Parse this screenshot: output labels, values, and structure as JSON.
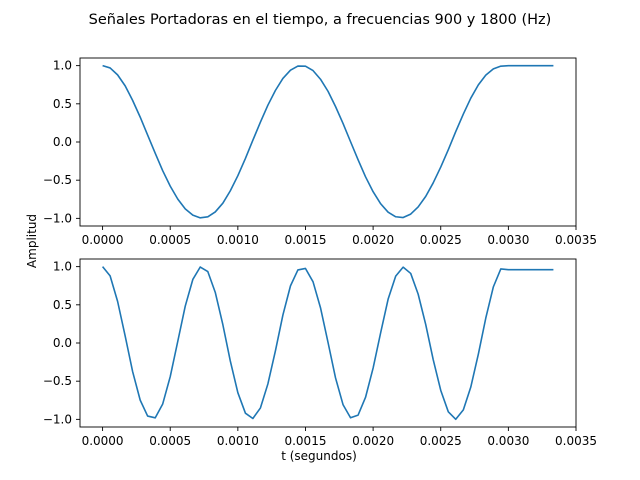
{
  "figure": {
    "title": "Señales Portadoras en el tiempo, a frecuencias 900 y 1800 (Hz)",
    "xlabel": "t (segundos)",
    "ylabel": "Amplitud"
  },
  "chart_data": [
    {
      "type": "line",
      "title": "",
      "xlim": [
        -0.000167,
        0.0035
      ],
      "ylim": [
        -1.1,
        1.1
      ],
      "x_ticks": [
        "0.0000",
        "0.0005",
        "0.0010",
        "0.0015",
        "0.0020",
        "0.0025",
        "0.0030",
        "0.0035"
      ],
      "x_tick_values": [
        0,
        0.0005,
        0.001,
        0.0015,
        0.002,
        0.0025,
        0.003,
        0.0035
      ],
      "y_ticks": [
        "−1.0",
        "−0.5",
        "0.0",
        "0.5",
        "1.0"
      ],
      "y_tick_values": [
        -1.0,
        -0.5,
        0.0,
        0.5,
        1.0
      ],
      "grid": false,
      "color": "#1f77b4",
      "series": [
        {
          "x": [
            0.0,
            5.56e-05,
            0.000111,
            0.000167,
            0.000222,
            0.000278,
            0.000333,
            0.000389,
            0.000444,
            0.0005,
            0.000556,
            0.000611,
            0.000667,
            0.000722,
            0.000778,
            0.000833,
            0.000889,
            0.000944,
            0.001,
            0.001056,
            0.001111,
            0.001167,
            0.001222,
            0.001278,
            0.001333,
            0.001389,
            0.001444,
            0.0015,
            0.001556,
            0.001611,
            0.001667,
            0.001722,
            0.001778,
            0.001833,
            0.001889,
            0.001944,
            0.002,
            0.002056,
            0.002111,
            0.002167,
            0.002222,
            0.002278,
            0.002333,
            0.002389,
            0.002444,
            0.0025,
            0.002556,
            0.002611,
            0.002667,
            0.002722,
            0.002778,
            0.002833,
            0.002889,
            0.002944,
            0.003,
            0.003056,
            0.003111,
            0.003167,
            0.003222,
            0.003278,
            0.003333
          ],
          "y": [
            1.0,
            0.97,
            0.879,
            0.735,
            0.545,
            0.326,
            0.091,
            -0.146,
            -0.374,
            -0.578,
            -0.748,
            -0.876,
            -0.957,
            -0.993,
            -0.98,
            -0.916,
            -0.801,
            -0.64,
            -0.441,
            -0.215,
            0.023,
            0.261,
            0.482,
            0.676,
            0.832,
            0.94,
            0.995,
            0.993,
            0.935,
            0.822,
            0.663,
            0.465,
            0.241,
            0.005,
            -0.233,
            -0.456,
            -0.651,
            -0.809,
            -0.919,
            -0.979,
            -0.989,
            -0.944,
            -0.85,
            -0.712,
            -0.536,
            -0.328,
            -0.101,
            0.136,
            0.366,
            0.574,
            0.748,
            0.876,
            0.957,
            0.993,
            0.999,
            0.999,
            0.999,
            0.999,
            0.999,
            0.999,
            0.999
          ]
        }
      ]
    },
    {
      "type": "line",
      "title": "",
      "xlim": [
        -0.000167,
        0.0035
      ],
      "ylim": [
        -1.1,
        1.1
      ],
      "x_ticks": [
        "0.0000",
        "0.0005",
        "0.0010",
        "0.0015",
        "0.0020",
        "0.0025",
        "0.0030",
        "0.0035"
      ],
      "x_tick_values": [
        0,
        0.0005,
        0.001,
        0.0015,
        0.002,
        0.0025,
        0.003,
        0.0035
      ],
      "y_ticks": [
        "−1.0",
        "−0.5",
        "0.0",
        "0.5",
        "1.0"
      ],
      "y_tick_values": [
        -1.0,
        -0.5,
        0.0,
        0.5,
        1.0
      ],
      "grid": false,
      "color": "#1f77b4",
      "series": [
        {
          "x": [
            0.0,
            5.56e-05,
            0.000111,
            0.000167,
            0.000222,
            0.000278,
            0.000333,
            0.000389,
            0.000444,
            0.0005,
            0.000556,
            0.000611,
            0.000667,
            0.000722,
            0.000778,
            0.000833,
            0.000889,
            0.000944,
            0.001,
            0.001056,
            0.001111,
            0.001167,
            0.001222,
            0.001278,
            0.001333,
            0.001389,
            0.001444,
            0.0015,
            0.001556,
            0.001611,
            0.001667,
            0.001722,
            0.001778,
            0.001833,
            0.001889,
            0.001944,
            0.002,
            0.002056,
            0.002111,
            0.002167,
            0.002222,
            0.002278,
            0.002333,
            0.002389,
            0.002444,
            0.0025,
            0.002556,
            0.002611,
            0.002667,
            0.002722,
            0.002778,
            0.002833,
            0.002889,
            0.002944,
            0.003,
            0.003056,
            0.003111,
            0.003167,
            0.003222,
            0.003278,
            0.003333
          ],
          "y": [
            1.0,
            0.879,
            0.545,
            0.091,
            -0.374,
            -0.748,
            -0.957,
            -0.98,
            -0.801,
            -0.441,
            0.023,
            0.482,
            0.832,
            0.995,
            0.935,
            0.663,
            0.241,
            -0.233,
            -0.651,
            -0.919,
            -0.989,
            -0.85,
            -0.536,
            -0.101,
            0.366,
            0.748,
            0.957,
            0.976,
            0.801,
            0.462,
            0.005,
            -0.456,
            -0.809,
            -0.979,
            -0.944,
            -0.712,
            -0.328,
            0.136,
            0.574,
            0.876,
            0.993,
            0.911,
            0.64,
            0.241,
            -0.215,
            -0.62,
            -0.901,
            -0.999,
            -0.876,
            -0.578,
            -0.146,
            0.326,
            0.735,
            0.97,
            0.96,
            0.96,
            0.96,
            0.96,
            0.96,
            0.96,
            0.96
          ]
        }
      ]
    }
  ]
}
